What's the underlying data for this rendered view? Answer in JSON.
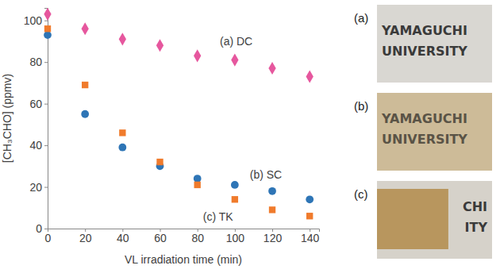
{
  "chart_data": {
    "type": "scatter",
    "x_label": "VL irradiation time (min)",
    "y_label": "[CH₃CHO] (ppmv)",
    "x": [
      0,
      20,
      40,
      60,
      80,
      100,
      120,
      140
    ],
    "series": [
      {
        "name": "(a) DC",
        "color": "#e6579e",
        "marker": "diamond",
        "values": [
          103,
          96,
          91,
          88,
          83,
          81,
          77,
          73
        ]
      },
      {
        "name": "(b) SC",
        "color": "#2e75b6",
        "marker": "circle",
        "values": [
          93,
          55,
          39,
          30,
          24,
          21,
          18,
          14
        ]
      },
      {
        "name": "(c) TK",
        "color": "#f07b2c",
        "marker": "square",
        "values": [
          96,
          69,
          46,
          32,
          21,
          14,
          9,
          6
        ]
      }
    ],
    "annotations": [
      {
        "text": "(a) DC",
        "x": 92,
        "y": 88
      },
      {
        "text": "(b) SC",
        "x": 108,
        "y": 24
      },
      {
        "text": "(c) TK",
        "x": 83,
        "y": 4
      }
    ],
    "xlim": [
      0,
      145
    ],
    "xticks": [
      0,
      20,
      40,
      60,
      80,
      100,
      120,
      140
    ],
    "ylim": [
      0,
      106
    ],
    "yticks": [
      0,
      20,
      40,
      60,
      80,
      100
    ],
    "grid": false
  },
  "photos": [
    {
      "label": "(a)",
      "text": [
        "YAMAGUCHI",
        "UNIVERSITY"
      ]
    },
    {
      "label": "(b)",
      "text": [
        "YAMAGUCHI",
        "UNIVERSITY"
      ]
    },
    {
      "label": "(c)",
      "text": [
        "CHI",
        "ITY"
      ]
    }
  ]
}
